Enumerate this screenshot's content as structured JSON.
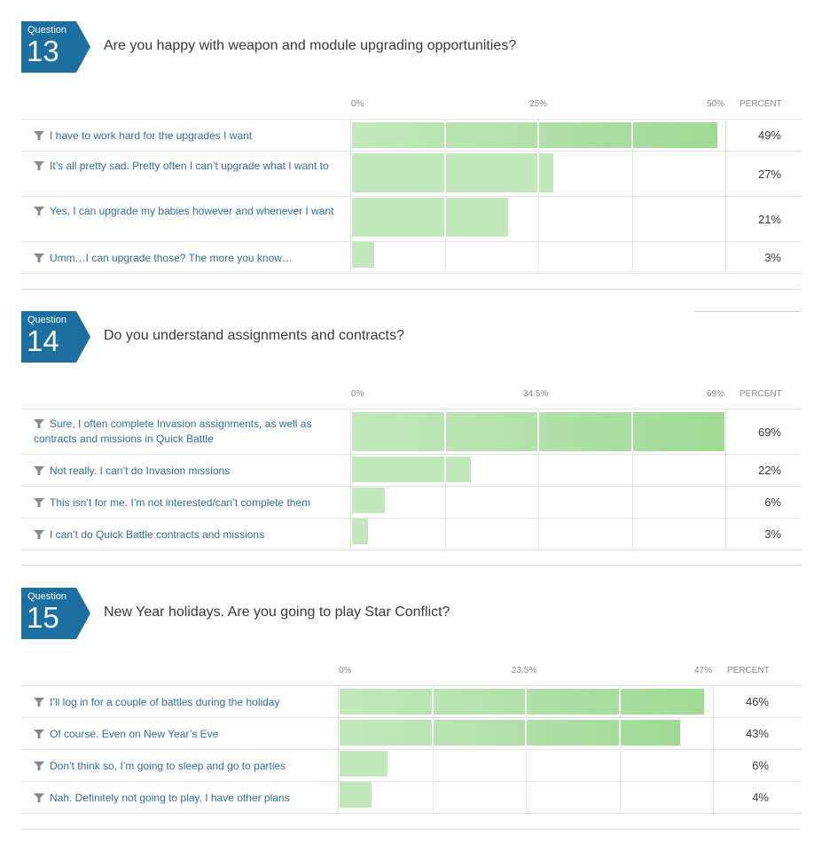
{
  "header": {
    "percent_label": "PERCENT"
  },
  "questions": [
    {
      "label": "Question",
      "number": "13",
      "title": "Are you happy with weapon and module upgrading opportunities?",
      "ticks": [
        "0%",
        "25%",
        "50%"
      ]
    },
    {
      "label": "Question",
      "number": "14",
      "title": "Do you understand assignments and contracts?",
      "ticks": [
        "0%",
        "34.5%",
        "69%"
      ]
    },
    {
      "label": "Question",
      "number": "15",
      "title": "New Year holidays. Are you going to play Star Conflict?",
      "ticks": [
        "0%",
        "23.5%",
        "47%"
      ]
    }
  ],
  "chart_data": [
    {
      "type": "bar",
      "orientation": "horizontal",
      "title": "Are you happy with weapon and module upgrading opportunities?",
      "xlim": [
        0,
        50
      ],
      "xlabel": "PERCENT",
      "categories": [
        "I have to work hard for the upgrades I want",
        "It’s all pretty sad. Pretty often I can’t upgrade what I want to",
        "Yes, I can upgrade my babies however and whenever I want",
        "Umm…I can upgrade those? The more you know…"
      ],
      "values": [
        49,
        27,
        21,
        3
      ],
      "value_labels": [
        "49%",
        "27%",
        "21%",
        "3%"
      ]
    },
    {
      "type": "bar",
      "orientation": "horizontal",
      "title": "Do you understand assignments and contracts?",
      "xlim": [
        0,
        69
      ],
      "xlabel": "PERCENT",
      "categories": [
        "Sure, I often complete Invasion assignments, as well as contracts and missions in Quick Battle",
        "Not really. I can’t do Invasion missions",
        "This isn’t for me. I’m not interested/can’t complete them",
        "I can’t do Quick Battle contracts and missions"
      ],
      "values": [
        69,
        22,
        6,
        3
      ],
      "value_labels": [
        "69%",
        "22%",
        "6%",
        "3%"
      ]
    },
    {
      "type": "bar",
      "orientation": "horizontal",
      "title": "New Year holidays. Are you going to play Star Conflict?",
      "xlim": [
        0,
        47
      ],
      "xlabel": "PERCENT",
      "categories": [
        "I’ll log in for a couple of battles during the holiday",
        "Of course. Even on New Year’s Eve",
        "Don’t think so, I’m going to sleep and go to parties",
        "Nah. Definitely not going to play, I have other plans"
      ],
      "values": [
        46,
        43,
        6,
        4
      ],
      "value_labels": [
        "46%",
        "43%",
        "6%",
        "4%"
      ]
    }
  ],
  "colors": {
    "badge": "#1b6fa1",
    "bar_light": "#c3e8bd",
    "bar_dark": "#9fda95",
    "label": "#2f6e9e"
  }
}
